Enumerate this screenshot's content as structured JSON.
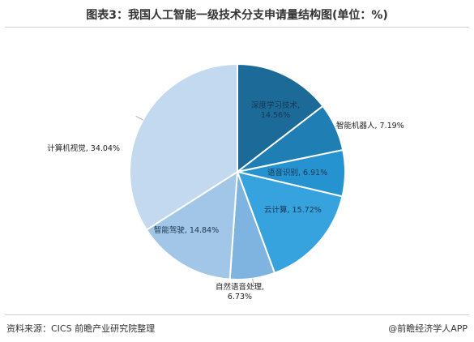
{
  "title": "图表3：我国人工智能一级技术分支申请量结构图(单位：%)",
  "source": "资料来源：CICS 前瞻产业研究院整理",
  "credit": "@前瞻经济学人APP",
  "chart_data": {
    "type": "pie",
    "title": "图表3：我国人工智能一级技术分支申请量结构图(单位：%)",
    "unit": "%",
    "slices": [
      {
        "label": "深度学习技术",
        "value": 14.56,
        "display": "深度学习技术,\n14.56%",
        "color": "#1b6a98"
      },
      {
        "label": "智能机器人",
        "value": 7.19,
        "display": "智能机器人, 7.19%",
        "color": "#1f7fb5"
      },
      {
        "label": "语音识别",
        "value": 6.91,
        "display": "语音识别, 6.91%",
        "color": "#2593cf"
      },
      {
        "label": "云计算",
        "value": 15.72,
        "display": "云计算, 15.72%",
        "color": "#36a3de"
      },
      {
        "label": "自然语音处理",
        "value": 6.73,
        "display": "自然语音处理,\n6.73%",
        "color": "#7fb4e0"
      },
      {
        "label": "智能驾驶",
        "value": 14.84,
        "display": "智能驾驶, 14.84%",
        "color": "#a2c6e8"
      },
      {
        "label": "计算机视觉",
        "value": 34.04,
        "display": "计算机视觉, 34.04%",
        "color": "#c2d9ef"
      }
    ]
  }
}
